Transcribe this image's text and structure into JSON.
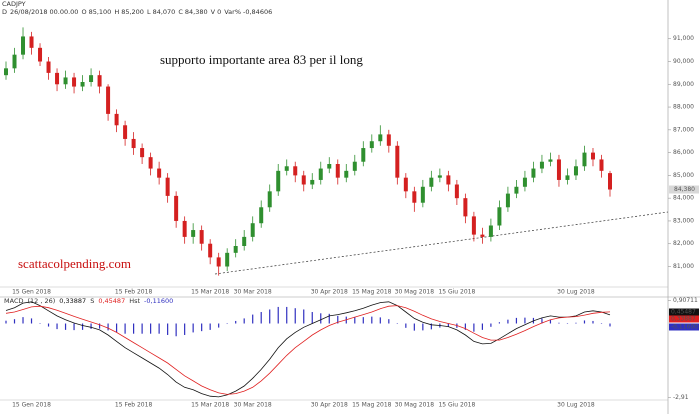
{
  "header": {
    "symbol": "CADJPY",
    "info": [
      "D",
      "26/08/2018",
      "00.00.00",
      "O",
      "85,100",
      "H",
      "85,200",
      "L",
      "84,070",
      "C",
      "84,380",
      "V",
      "0",
      "Var%",
      "-0,84606"
    ]
  },
  "chart_data": [
    {
      "type": "candlestick",
      "up_color": "#2f8f2f",
      "down_color": "#d42020",
      "annotations": [
        "supporto importante area 83 per il long",
        "scattacolpending.com"
      ],
      "categories": [
        null,
        null,
        null,
        "15 Gen 2018",
        null,
        null,
        null,
        null,
        null,
        null,
        null,
        null,
        null,
        null,
        null,
        "15 Feb 2018",
        null,
        null,
        null,
        null,
        null,
        null,
        null,
        null,
        "15 Mar 2018",
        null,
        null,
        null,
        null,
        "30 Mar 2018",
        null,
        null,
        null,
        null,
        null,
        null,
        null,
        null,
        "30 Apr 2018",
        null,
        null,
        null,
        null,
        "15 Mag 2018",
        null,
        null,
        null,
        null,
        "30 Mag 2018",
        null,
        null,
        null,
        null,
        "15 Giu 2018",
        null,
        null,
        null,
        null,
        null,
        null,
        null,
        null,
        null,
        null,
        null,
        null,
        null,
        "30 Lug 2018",
        null,
        null,
        null,
        null
      ],
      "open": [
        89.4,
        89.7,
        90.3,
        91.1,
        90.6,
        90.0,
        89.5,
        89.0,
        89.3,
        88.9,
        89.1,
        89.4,
        88.9,
        87.7,
        87.2,
        86.6,
        86.2,
        85.8,
        85.3,
        84.9,
        84.1,
        83.0,
        82.3,
        82.6,
        82.0,
        81.4,
        81.0,
        81.6,
        81.9,
        82.3,
        82.9,
        83.6,
        84.3,
        85.2,
        85.4,
        85.0,
        84.6,
        84.8,
        85.3,
        85.5,
        84.9,
        85.2,
        85.6,
        86.2,
        86.5,
        86.8,
        86.3,
        84.9,
        84.3,
        83.8,
        84.5,
        84.9,
        85.0,
        84.6,
        84.0,
        83.2,
        82.4,
        82.3,
        82.8,
        83.6,
        84.2,
        84.5,
        84.9,
        85.3,
        85.6,
        85.7,
        84.8,
        85.0,
        85.4,
        86.0,
        85.7,
        85.1
      ],
      "high": [
        90.0,
        90.6,
        91.5,
        91.3,
        90.8,
        90.2,
        89.7,
        89.6,
        89.5,
        89.4,
        89.7,
        89.6,
        89.0,
        87.9,
        87.4,
        86.9,
        86.4,
        86.0,
        85.6,
        85.1,
        84.3,
        83.2,
        82.9,
        82.8,
        82.2,
        81.6,
        81.8,
        82.2,
        82.6,
        83.2,
        83.9,
        84.6,
        85.5,
        85.7,
        85.6,
        85.2,
        85.1,
        85.6,
        85.8,
        85.7,
        85.5,
        85.9,
        86.5,
        86.8,
        87.2,
        87.0,
        86.5,
        85.1,
        84.5,
        84.8,
        85.2,
        85.3,
        85.2,
        84.8,
        84.2,
        83.4,
        82.7,
        83.1,
        83.9,
        84.5,
        84.8,
        85.2,
        85.6,
        85.9,
        86.0,
        85.9,
        85.3,
        85.7,
        86.3,
        86.2,
        85.9,
        85.2
      ],
      "low": [
        89.2,
        89.5,
        90.1,
        90.3,
        89.8,
        89.2,
        88.7,
        88.8,
        88.6,
        88.7,
        88.9,
        88.6,
        87.4,
        86.9,
        86.3,
        85.9,
        85.5,
        85.0,
        84.6,
        83.8,
        82.7,
        82.0,
        82.0,
        81.7,
        81.1,
        80.6,
        80.8,
        81.4,
        81.7,
        82.1,
        82.7,
        83.4,
        84.1,
        85.0,
        84.7,
        84.3,
        84.4,
        84.6,
        85.1,
        84.6,
        84.7,
        85.0,
        85.4,
        86.0,
        86.3,
        86.0,
        84.6,
        84.0,
        83.4,
        83.6,
        84.3,
        84.7,
        84.3,
        83.7,
        82.9,
        82.1,
        82.0,
        82.1,
        82.6,
        83.4,
        84.0,
        84.3,
        84.7,
        85.1,
        85.4,
        84.5,
        84.6,
        84.8,
        85.2,
        85.4,
        84.9,
        84.07
      ],
      "close": [
        89.7,
        90.3,
        91.1,
        90.6,
        90.0,
        89.5,
        89.0,
        89.3,
        88.9,
        89.1,
        89.4,
        88.9,
        87.7,
        87.2,
        86.6,
        86.2,
        85.8,
        85.3,
        84.9,
        84.1,
        83.0,
        82.3,
        82.6,
        82.0,
        81.4,
        81.0,
        81.6,
        81.9,
        82.3,
        82.9,
        83.6,
        84.3,
        85.2,
        85.4,
        85.0,
        84.6,
        84.8,
        85.3,
        85.5,
        84.9,
        85.2,
        85.6,
        86.2,
        86.5,
        86.8,
        86.3,
        84.9,
        84.3,
        83.8,
        84.5,
        84.9,
        85.0,
        84.6,
        84.0,
        83.2,
        82.4,
        82.3,
        82.8,
        83.6,
        84.2,
        84.5,
        84.9,
        85.3,
        85.6,
        85.7,
        84.8,
        85.0,
        85.4,
        86.0,
        85.7,
        85.2,
        84.38
      ],
      "ylim": [
        80.1,
        92.7
      ],
      "yticks": [
        {
          "value": 81,
          "label": "81,000"
        },
        {
          "value": 82,
          "label": "82,000"
        },
        {
          "value": 83,
          "label": "83,000"
        },
        {
          "value": 84,
          "label": "84,000"
        },
        {
          "value": 85,
          "label": "85,000"
        },
        {
          "value": 86,
          "label": "86,000"
        },
        {
          "value": 87,
          "label": "87,000"
        },
        {
          "value": 88,
          "label": "88,000"
        },
        {
          "value": 89,
          "label": "89,000"
        },
        {
          "value": 90,
          "label": "90,000"
        },
        {
          "value": 91,
          "label": "91,000"
        }
      ]
    },
    {
      "type": "macd",
      "legend": [
        "MACD",
        "(12 , 26)",
        "0,33887",
        "S",
        "0,45487",
        "Hst",
        "-0,11600"
      ],
      "series": [
        {
          "color": "#111111",
          "values": [
            0.51,
            0.62,
            0.8,
            0.85,
            0.7,
            0.5,
            0.3,
            0.15,
            0.02,
            -0.08,
            -0.15,
            -0.25,
            -0.45,
            -0.7,
            -0.95,
            -1.15,
            -1.35,
            -1.55,
            -1.75,
            -2.0,
            -2.3,
            -2.5,
            -2.6,
            -2.75,
            -2.85,
            -2.88,
            -2.8,
            -2.65,
            -2.45,
            -2.15,
            -1.8,
            -1.4,
            -0.95,
            -0.6,
            -0.35,
            -0.15,
            0.0,
            0.15,
            0.3,
            0.35,
            0.42,
            0.5,
            0.6,
            0.72,
            0.82,
            0.85,
            0.7,
            0.45,
            0.2,
            0.05,
            -0.05,
            -0.08,
            -0.12,
            -0.25,
            -0.45,
            -0.7,
            -0.8,
            -0.78,
            -0.6,
            -0.4,
            -0.2,
            -0.05,
            0.1,
            0.22,
            0.3,
            0.25,
            0.25,
            0.3,
            0.45,
            0.5,
            0.45,
            0.33887
          ]
        },
        {
          "color": "#e02020",
          "values": [
            0.4,
            0.45,
            0.55,
            0.65,
            0.68,
            0.62,
            0.52,
            0.4,
            0.28,
            0.17,
            0.06,
            -0.05,
            -0.18,
            -0.35,
            -0.55,
            -0.75,
            -0.95,
            -1.15,
            -1.35,
            -1.55,
            -1.8,
            -2.05,
            -2.25,
            -2.45,
            -2.6,
            -2.72,
            -2.78,
            -2.75,
            -2.65,
            -2.5,
            -2.25,
            -1.95,
            -1.6,
            -1.25,
            -0.95,
            -0.7,
            -0.45,
            -0.25,
            -0.08,
            0.05,
            0.15,
            0.25,
            0.35,
            0.45,
            0.58,
            0.68,
            0.7,
            0.62,
            0.48,
            0.32,
            0.18,
            0.08,
            0.0,
            -0.08,
            -0.2,
            -0.38,
            -0.55,
            -0.65,
            -0.65,
            -0.55,
            -0.42,
            -0.28,
            -0.12,
            0.02,
            0.15,
            0.22,
            0.25,
            0.27,
            0.33,
            0.4,
            0.44,
            0.45487
          ]
        },
        {
          "color": "#3030c0",
          "values": [
            0.11,
            0.17,
            0.25,
            0.2,
            0.02,
            -0.12,
            -0.22,
            -0.25,
            -0.26,
            -0.25,
            -0.21,
            -0.2,
            -0.27,
            -0.35,
            -0.4,
            -0.4,
            -0.4,
            -0.4,
            -0.4,
            -0.45,
            -0.5,
            -0.45,
            -0.35,
            -0.3,
            -0.25,
            -0.16,
            -0.02,
            0.1,
            0.2,
            0.35,
            0.45,
            0.55,
            0.65,
            0.65,
            0.6,
            0.55,
            0.45,
            0.4,
            0.38,
            0.3,
            0.27,
            0.25,
            0.25,
            0.27,
            0.24,
            0.17,
            0.0,
            -0.17,
            -0.28,
            -0.27,
            -0.23,
            -0.16,
            -0.12,
            -0.17,
            -0.25,
            -0.32,
            -0.25,
            -0.13,
            0.05,
            0.15,
            0.22,
            0.23,
            0.22,
            0.2,
            0.15,
            0.03,
            0.0,
            0.03,
            0.12,
            0.1,
            0.01,
            -0.116
          ]
        }
      ],
      "ylim": [
        -3.0,
        1.0
      ],
      "yticks": [
        {
          "value": 0.90711,
          "label": "0,90711"
        },
        {
          "value": -2.91,
          "label": "-2,91"
        }
      ]
    }
  ]
}
